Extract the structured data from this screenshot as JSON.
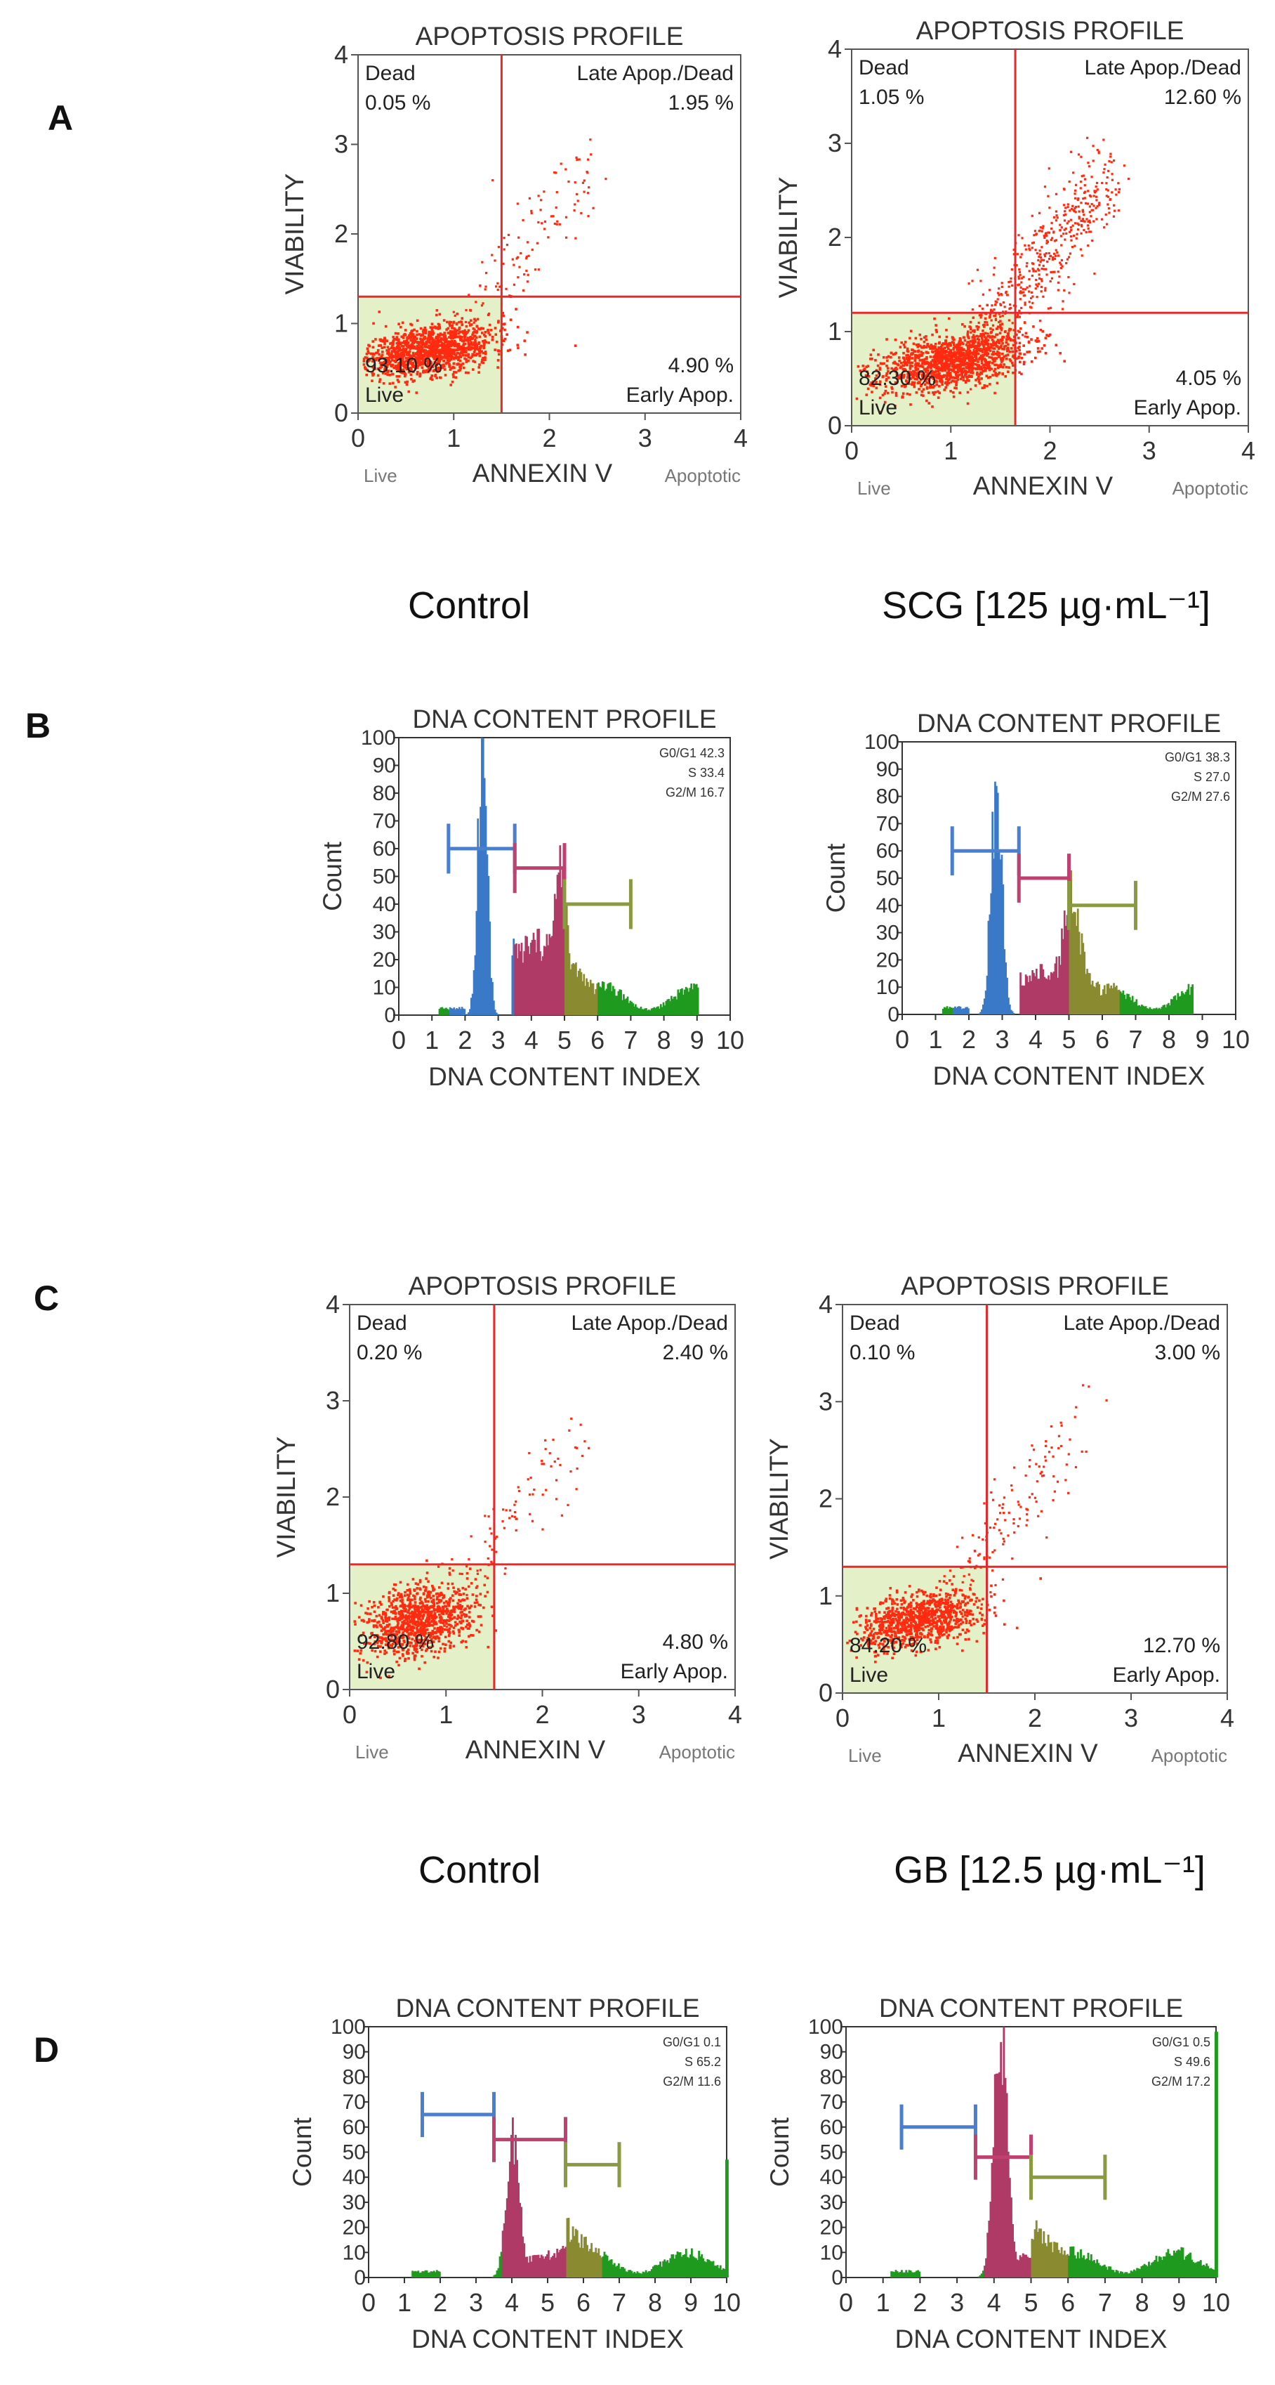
{
  "figure": {
    "panels": [
      {
        "letter": "A"
      },
      {
        "letter": "B"
      },
      {
        "letter": "C"
      },
      {
        "letter": "D"
      }
    ],
    "conditions": {
      "row1_left": "Control",
      "row1_right": "SCG [125 µg·mL⁻¹]",
      "row2_left": "Control",
      "row2_right": "GB [12.5 µg·mL⁻¹]"
    }
  },
  "colors": {
    "gate_line": "#e8292a",
    "live_fill": "#e4f0c8",
    "dots": "#ff2b10",
    "g0g1": "#3a78c8",
    "s": "#b03a66",
    "g2m": "#8a8a30",
    "tail": "#1f9a1f",
    "bracket_g0g1": "#4a7fd0",
    "bracket_s": "#c0406f",
    "bracket_g2m": "#8a9a40"
  },
  "chart_data": [
    {
      "type": "scatter",
      "panel": "A",
      "position": "left",
      "condition": "Control",
      "title": "APOPTOSIS PROFILE",
      "xlabel": "ANNEXIN V",
      "ylabel": "VIABILITY",
      "x_left_label": "Live",
      "x_right_label": "Apoptotic",
      "xlim": [
        0,
        4
      ],
      "ylim": [
        0,
        4
      ],
      "xticks": [
        "0",
        "1",
        "2",
        "3",
        "4"
      ],
      "yticks": [
        "0",
        "1",
        "2",
        "3",
        "4"
      ],
      "gate_x": 1.5,
      "gate_y": 1.3,
      "quadrants": {
        "dead": {
          "label": "Dead",
          "value": "0.05 %"
        },
        "late": {
          "label": "Late Apop./Dead",
          "value": "1.95 %"
        },
        "live": {
          "label": "Live",
          "value": "93.10 %"
        },
        "early": {
          "label": "Early Apop.",
          "value": "4.90 %"
        }
      },
      "cluster": {
        "cx": 0.75,
        "cy": 0.7,
        "sx": 0.33,
        "sy": 0.14,
        "n": 1300,
        "tail": 120,
        "seed": 11
      }
    },
    {
      "type": "scatter",
      "panel": "A",
      "position": "right",
      "condition": "SCG [125 µg·mL⁻¹]",
      "title": "APOPTOSIS PROFILE",
      "xlabel": "ANNEXIN V",
      "ylabel": "VIABILITY",
      "x_left_label": "Live",
      "x_right_label": "Apoptotic",
      "xlim": [
        0,
        4
      ],
      "ylim": [
        0,
        4
      ],
      "xticks": [
        "0",
        "1",
        "2",
        "3",
        "4"
      ],
      "yticks": [
        "0",
        "1",
        "2",
        "3",
        "4"
      ],
      "gate_x": 1.65,
      "gate_y": 1.2,
      "quadrants": {
        "dead": {
          "label": "Dead",
          "value": "1.05 %"
        },
        "late": {
          "label": "Late Apop./Dead",
          "value": "12.60 %"
        },
        "live": {
          "label": "Live",
          "value": "82.30 %"
        },
        "early": {
          "label": "Early Apop.",
          "value": "4.05 %"
        }
      },
      "cluster": {
        "cx": 1.0,
        "cy": 0.68,
        "sx": 0.38,
        "sy": 0.15,
        "n": 1300,
        "tail": 520,
        "seed": 23
      }
    },
    {
      "type": "histogram",
      "panel": "B",
      "position": "left",
      "condition": "Control",
      "title": "DNA CONTENT PROFILE",
      "xlabel": "DNA CONTENT INDEX",
      "ylabel": "Count",
      "xlim": [
        0,
        10
      ],
      "ylim": [
        0,
        100
      ],
      "xticks": [
        "0",
        "1",
        "2",
        "3",
        "4",
        "5",
        "6",
        "7",
        "8",
        "9",
        "10"
      ],
      "yticks": [
        "0",
        "10",
        "20",
        "30",
        "40",
        "50",
        "60",
        "70",
        "80",
        "90",
        "100"
      ],
      "stats": [
        "G0/G1 42.3",
        "S 33.4",
        "G2/M 16.7"
      ],
      "g0g1": {
        "x": 2.5,
        "height": 98,
        "width": 0.14
      },
      "s_level": 22,
      "g2m": {
        "x": 4.85,
        "height": 52,
        "width": 0.2
      },
      "s_range": [
        3.4,
        5.0
      ],
      "tail_range": [
        5.5,
        9.0
      ],
      "brackets": {
        "g0g1": [
          1.5,
          3.5,
          60
        ],
        "s": [
          3.5,
          5.0,
          53
        ],
        "g2m": [
          5.0,
          7.0,
          40
        ]
      }
    },
    {
      "type": "histogram",
      "panel": "B",
      "position": "right",
      "condition": "SCG [125 µg·mL⁻¹]",
      "title": "DNA CONTENT PROFILE",
      "xlabel": "DNA CONTENT INDEX",
      "ylabel": "Count",
      "xlim": [
        0,
        10
      ],
      "ylim": [
        0,
        100
      ],
      "xticks": [
        "0",
        "1",
        "2",
        "3",
        "4",
        "5",
        "6",
        "7",
        "8",
        "9",
        "10"
      ],
      "yticks": [
        "0",
        "10",
        "20",
        "30",
        "40",
        "50",
        "60",
        "70",
        "80",
        "90",
        "100"
      ],
      "stats": [
        "G0/G1 38.3",
        "S 27.0",
        "G2/M 27.6"
      ],
      "g0g1": {
        "x": 2.8,
        "height": 86,
        "width": 0.16
      },
      "s_level": 13,
      "g2m": {
        "x": 5.05,
        "height": 43,
        "width": 0.3
      },
      "s_range": [
        3.5,
        5.0
      ],
      "tail_range": [
        6.0,
        8.7
      ],
      "brackets": {
        "g0g1": [
          1.5,
          3.5,
          60
        ],
        "s": [
          3.5,
          5.0,
          50
        ],
        "g2m": [
          5.0,
          7.0,
          40
        ]
      }
    },
    {
      "type": "scatter",
      "panel": "C",
      "position": "left",
      "condition": "Control",
      "title": "APOPTOSIS PROFILE",
      "xlabel": "ANNEXIN V",
      "ylabel": "VIABILITY",
      "x_left_label": "Live",
      "x_right_label": "Apoptotic",
      "xlim": [
        0,
        4
      ],
      "ylim": [
        0,
        4
      ],
      "xticks": [
        "0",
        "1",
        "2",
        "3",
        "4"
      ],
      "yticks": [
        "0",
        "1",
        "2",
        "3",
        "4"
      ],
      "gate_x": 1.5,
      "gate_y": 1.3,
      "quadrants": {
        "dead": {
          "label": "Dead",
          "value": "0.20 %"
        },
        "late": {
          "label": "Late Apop./Dead",
          "value": "2.40 %"
        },
        "live": {
          "label": "Live",
          "value": "92.80 %"
        },
        "early": {
          "label": "Early Apop.",
          "value": "4.80 %"
        }
      },
      "cluster": {
        "cx": 0.72,
        "cy": 0.72,
        "sx": 0.28,
        "sy": 0.18,
        "n": 1000,
        "tail": 90,
        "seed": 37
      }
    },
    {
      "type": "scatter",
      "panel": "C",
      "position": "right",
      "condition": "GB [12.5 µg·mL⁻¹]",
      "title": "APOPTOSIS PROFILE",
      "xlabel": "ANNEXIN V",
      "ylabel": "VIABILITY",
      "x_left_label": "Live",
      "x_right_label": "Apoptotic",
      "xlim": [
        0,
        4
      ],
      "ylim": [
        0,
        4
      ],
      "xticks": [
        "0",
        "1",
        "2",
        "3",
        "4"
      ],
      "yticks": [
        "0",
        "1",
        "2",
        "3",
        "4"
      ],
      "gate_x": 1.5,
      "gate_y": 1.3,
      "quadrants": {
        "dead": {
          "label": "Dead",
          "value": "0.10 %"
        },
        "late": {
          "label": "Late Apop./Dead",
          "value": "3.00 %"
        },
        "live": {
          "label": "Live",
          "value": "84.20 %"
        },
        "early": {
          "label": "Early Apop.",
          "value": "12.70 %"
        }
      },
      "cluster": {
        "cx": 0.8,
        "cy": 0.75,
        "sx": 0.33,
        "sy": 0.14,
        "n": 950,
        "tail": 140,
        "seed": 51
      }
    },
    {
      "type": "histogram",
      "panel": "D",
      "position": "left",
      "condition": "Control",
      "title": "DNA CONTENT PROFILE",
      "xlabel": "DNA CONTENT INDEX",
      "ylabel": "Count",
      "xlim": [
        0,
        10
      ],
      "ylim": [
        0,
        100
      ],
      "xticks": [
        "0",
        "1",
        "2",
        "3",
        "4",
        "5",
        "6",
        "7",
        "8",
        "9",
        "10"
      ],
      "yticks": [
        "0",
        "10",
        "20",
        "30",
        "40",
        "50",
        "60",
        "70",
        "80",
        "90",
        "100"
      ],
      "stats": [
        "G0/G1 0.1",
        "S 65.2",
        "G2/M 11.6"
      ],
      "g0g1": {
        "x": 3.4,
        "height": 0,
        "width": 0.1
      },
      "s_level": 4,
      "g2m": {
        "x": 4.0,
        "height": 56,
        "width": 0.18
      },
      "s_range": [
        3.7,
        5.5
      ],
      "tail_range": [
        6.0,
        10.0
      ],
      "edge_spike": 47,
      "brackets": {
        "g0g1": [
          1.5,
          3.5,
          65
        ],
        "s": [
          3.5,
          5.5,
          55
        ],
        "g2m": [
          5.5,
          7.0,
          45
        ]
      }
    },
    {
      "type": "histogram",
      "panel": "D",
      "position": "right",
      "condition": "GB [12.5 µg·mL⁻¹]",
      "title": "DNA CONTENT PROFILE",
      "xlabel": "DNA CONTENT INDEX",
      "ylabel": "Count",
      "xlim": [
        0,
        10
      ],
      "ylim": [
        0,
        100
      ],
      "xticks": [
        "0",
        "1",
        "2",
        "3",
        "4",
        "5",
        "6",
        "7",
        "8",
        "9",
        "10"
      ],
      "yticks": [
        "0",
        "10",
        "20",
        "30",
        "40",
        "50",
        "60",
        "70",
        "80",
        "90",
        "100"
      ],
      "stats": [
        "G0/G1 0.5",
        "S 49.6",
        "G2/M 17.2"
      ],
      "g0g1": {
        "x": 3.4,
        "height": 0,
        "width": 0.1
      },
      "s_level": 5,
      "g2m": {
        "x": 4.15,
        "height": 100,
        "width": 0.18
      },
      "s_range": [
        3.7,
        5.0
      ],
      "tail_range": [
        5.5,
        10.0
      ],
      "edge_spike": 98,
      "brackets": {
        "g0g1": [
          1.5,
          3.5,
          60
        ],
        "s": [
          3.5,
          5.0,
          48
        ],
        "g2m": [
          5.0,
          7.0,
          40
        ]
      }
    }
  ]
}
